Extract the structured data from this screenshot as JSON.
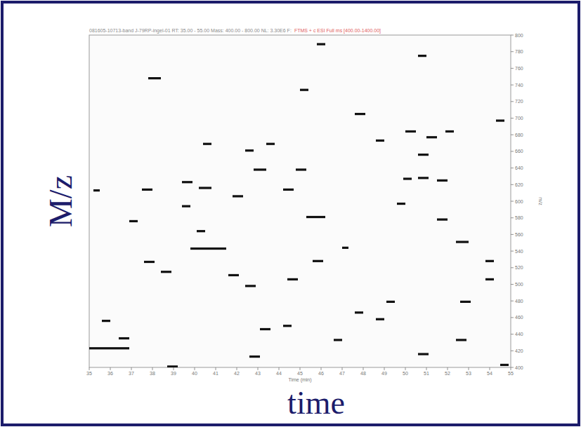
{
  "chart_data": {
    "type": "scatter",
    "title": "081605-10713-band J-79RP-ingel-01  RT: 35.00 - 55.00  Mass: 400.00 - 800.00  NL: 3.30E6  F:",
    "subtitle": "FTMS + c ESI Full ms [400.00-1400.00]",
    "xlabel": "Time (min)",
    "ylabel": "m/z",
    "annotations": [
      "M/z",
      "time"
    ],
    "color": "#111111",
    "marker": "dash",
    "xlim": [
      35,
      55
    ],
    "ylim": [
      400,
      800
    ],
    "xticks": [
      35,
      36,
      37,
      38,
      39,
      40,
      41,
      42,
      43,
      44,
      45,
      46,
      47,
      48,
      49,
      50,
      51,
      52,
      53,
      54,
      55
    ],
    "yticks": [
      400,
      420,
      440,
      460,
      480,
      500,
      520,
      540,
      560,
      580,
      600,
      620,
      640,
      660,
      680,
      700,
      720,
      740,
      760,
      780,
      800
    ],
    "x": [
      37.8,
      45.0,
      45.8,
      50.6,
      47.6,
      50.0,
      51.9,
      51.0,
      54.3,
      50.6,
      42.8,
      44.8,
      39.4,
      40.2,
      49.9,
      50.6,
      51.5,
      37.5,
      41.8,
      44.2,
      39.4,
      45.3,
      51.5,
      39.8,
      52.4,
      37.6,
      45.6,
      47.0,
      41.6,
      38.4,
      44.4,
      42.4,
      52.6,
      49.1,
      48.6,
      43.1,
      44.2,
      35.0,
      42.6,
      35.6,
      36.4,
      50.6,
      52.4,
      54.5,
      38.7,
      46.6,
      47.6,
      53.8,
      53.8,
      35.2,
      40.4,
      43.4,
      48.6,
      42.4,
      36.9,
      40.1,
      49.6
    ],
    "y": [
      748,
      734,
      789,
      775,
      705,
      684,
      684,
      677,
      697,
      656,
      638,
      638,
      623,
      616,
      627,
      628,
      625,
      614,
      606,
      614,
      594,
      581,
      578,
      543,
      551,
      527,
      528,
      544,
      511,
      515,
      506,
      498,
      479,
      479,
      458,
      446,
      450,
      423,
      413,
      456,
      435,
      416,
      433,
      403,
      401,
      433,
      466,
      506,
      528,
      613,
      669,
      669,
      673,
      661,
      576,
      564,
      597
    ],
    "durations": [
      0.6,
      0.4,
      0.4,
      0.4,
      0.5,
      0.5,
      0.4,
      0.5,
      0.4,
      0.5,
      0.6,
      0.5,
      0.5,
      0.6,
      0.4,
      0.5,
      0.5,
      0.5,
      0.5,
      0.5,
      0.4,
      0.9,
      0.5,
      1.7,
      0.6,
      0.5,
      0.5,
      0.3,
      0.5,
      0.5,
      0.5,
      0.5,
      0.5,
      0.4,
      0.4,
      0.5,
      0.4,
      1.9,
      0.5,
      0.4,
      0.5,
      0.5,
      0.5,
      0.4,
      0.5,
      0.4,
      0.4,
      0.4,
      0.4,
      0.3,
      0.4,
      0.4,
      0.4,
      0.4,
      0.4,
      0.4,
      0.4
    ]
  }
}
